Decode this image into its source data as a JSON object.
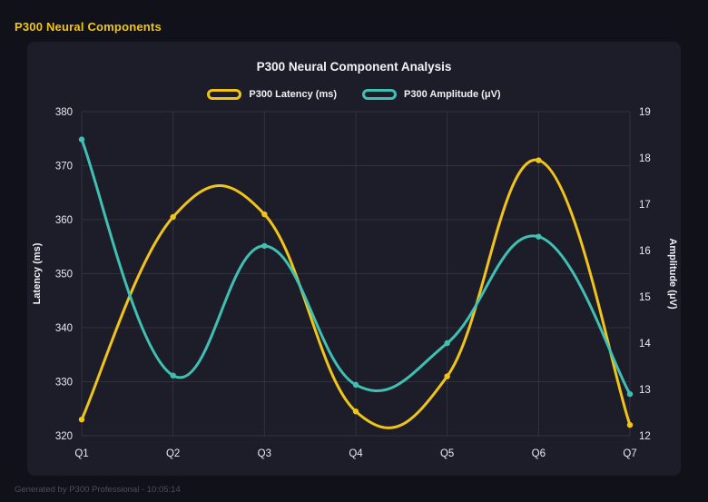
{
  "page": {
    "header_title": "P300 Neural Components",
    "footer_text": "Generated by P300 Professional - 10:05:14"
  },
  "chart_data": {
    "type": "line",
    "title": "P300 Neural Component Analysis",
    "categories": [
      "Q1",
      "Q2",
      "Q3",
      "Q4",
      "Q5",
      "Q6",
      "Q7"
    ],
    "series": [
      {
        "name": "P300 Latency (ms)",
        "axis": "left",
        "color": "#f0c419",
        "values": [
          323,
          360.5,
          361,
          324.5,
          331,
          371,
          322
        ]
      },
      {
        "name": "P300 Amplitude (μV)",
        "axis": "right",
        "color": "#40bfb3",
        "values": [
          18.4,
          13.3,
          16.1,
          13.1,
          14.0,
          16.3,
          12.9
        ]
      }
    ],
    "left_axis": {
      "label": "Latency (ms)",
      "min": 320,
      "max": 380,
      "step": 10
    },
    "right_axis": {
      "label": "Amplitude (μV)",
      "min": 12,
      "max": 19,
      "step": 1
    },
    "grid": true,
    "legend_position": "top",
    "colors": {
      "background": "#111119",
      "card": "#1d1d2a",
      "gridline": "rgba(255,255,255,0.09)",
      "tick_text": "#e9e9f2",
      "accent_yellow": "#f2c50f",
      "accent_teal": "#40bfb3"
    }
  }
}
